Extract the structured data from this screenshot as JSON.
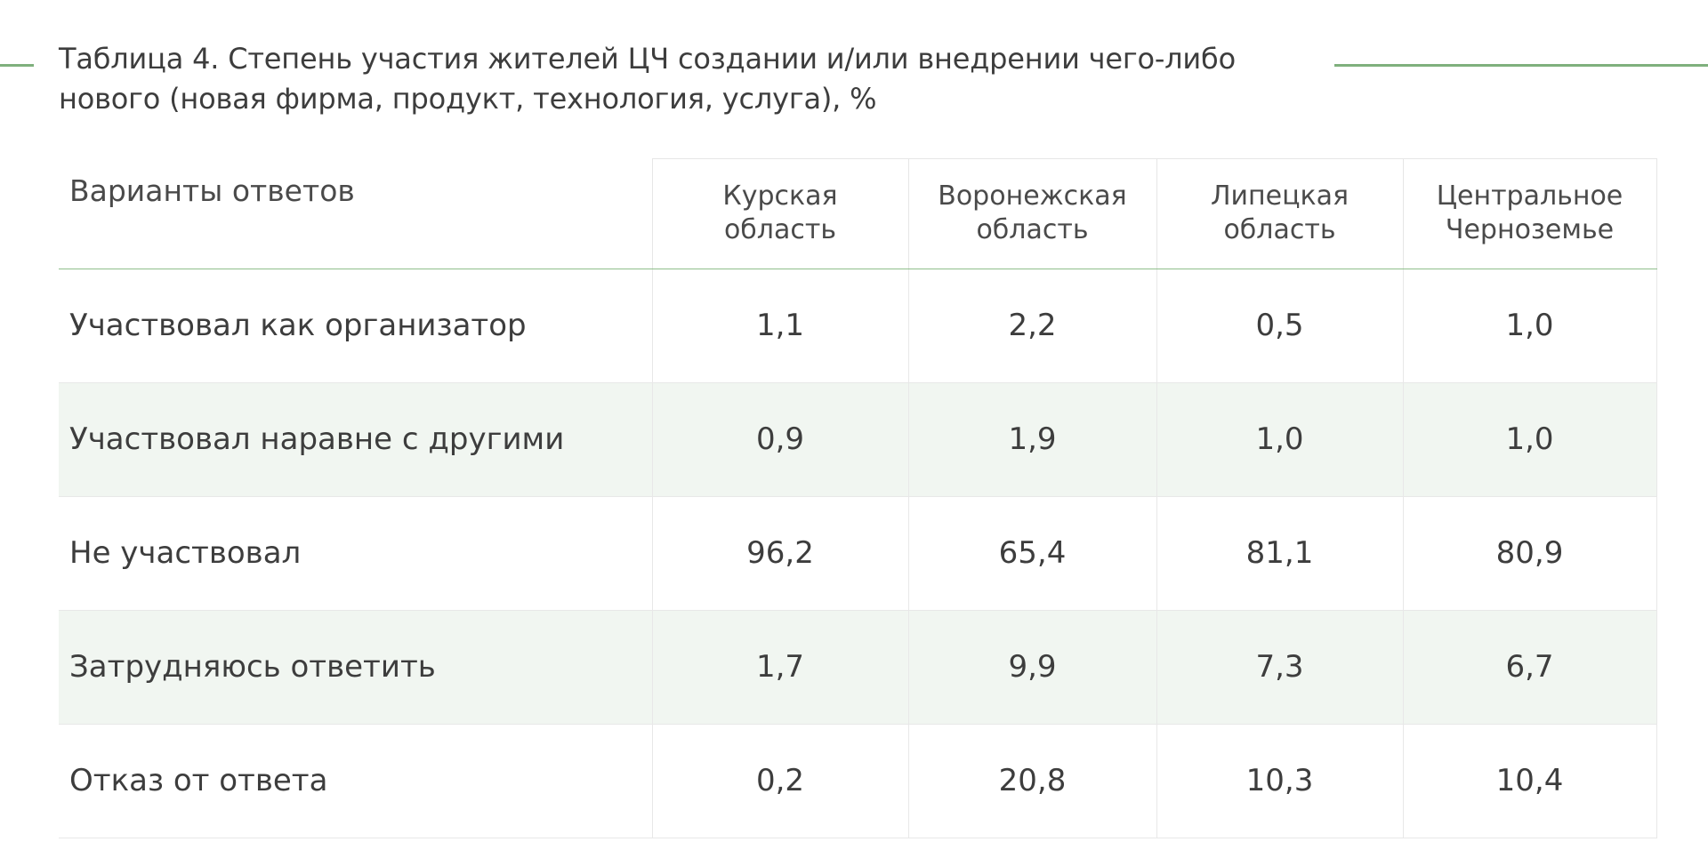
{
  "title_line1": "Таблица 4. Степень участия жителей ЦЧ создании и/или внедрении чего-либо",
  "title_line2": "нового (новая фирма, продукт, технология, услуга), %",
  "table": {
    "header_label": "Варианты ответов",
    "columns": [
      {
        "line1": "Курская",
        "line2": "область"
      },
      {
        "line1": "Воронежская",
        "line2": "область"
      },
      {
        "line1": "Липецкая",
        "line2": "область"
      },
      {
        "line1": "Центральное",
        "line2": "Черноземье"
      }
    ],
    "rows": [
      {
        "label": "Участвовал как организатор",
        "values": [
          "1,1",
          "2,2",
          "0,5",
          "1,0"
        ]
      },
      {
        "label": "Участвовал наравне с другими",
        "values": [
          "0,9",
          "1,9",
          "1,0",
          "1,0"
        ]
      },
      {
        "label": "Не участвовал",
        "values": [
          "96,2",
          "65,4",
          "81,1",
          "80,9"
        ]
      },
      {
        "label": "Затрудняюсь ответить",
        "values": [
          "1,7",
          "9,9",
          "7,3",
          "6,7"
        ]
      },
      {
        "label": "Отказ от ответа",
        "values": [
          "0,2",
          "20,8",
          "10,3",
          "10,4"
        ]
      }
    ]
  },
  "colors": {
    "accent_line": "#7fb07d",
    "alt_row_bg": "#f1f6f1",
    "text": "#3d3d3d"
  }
}
